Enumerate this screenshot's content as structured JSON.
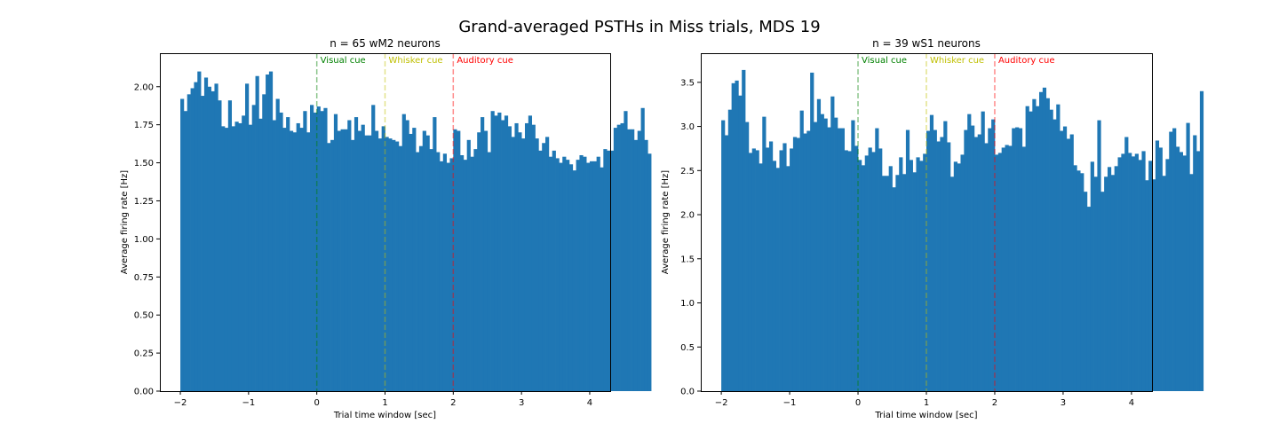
{
  "figure": {
    "title": "Grand-averaged PSTHs in Miss trials, MDS 19"
  },
  "colors": {
    "bar": "#1f77b4",
    "visual": "#008000",
    "whisker": "#bfbf00",
    "auditory": "#ff0000"
  },
  "chart_data": [
    {
      "type": "bar",
      "title": "n = 65 wM2 neurons",
      "xlabel": "Trial time window [sec]",
      "ylabel": "Average firing rate [Hz]",
      "xlim": [
        -2.3,
        4.3
      ],
      "ylim": [
        0,
        2.22
      ],
      "xticks": [
        -2,
        -1,
        0,
        1,
        2,
        3,
        4
      ],
      "yticks": [
        0.0,
        0.25,
        0.5,
        0.75,
        1.0,
        1.25,
        1.5,
        1.75,
        2.0
      ],
      "xtick_labels": [
        "−2",
        "−1",
        "0",
        "1",
        "2",
        "3",
        "4"
      ],
      "ytick_labels": [
        "0.00",
        "0.25",
        "0.50",
        "0.75",
        "1.00",
        "1.25",
        "1.50",
        "1.75",
        "2.00"
      ],
      "bin_start": -2,
      "bin_width": 0.05,
      "values": [
        1.92,
        1.84,
        1.95,
        1.99,
        2.03,
        2.1,
        1.94,
        2.06,
        2.0,
        1.97,
        2.02,
        1.91,
        1.74,
        1.73,
        1.91,
        1.74,
        1.77,
        1.76,
        1.81,
        2.02,
        1.75,
        1.88,
        2.07,
        1.79,
        1.95,
        2.08,
        2.1,
        1.78,
        1.92,
        1.83,
        1.73,
        1.8,
        1.71,
        1.7,
        1.76,
        1.73,
        1.84,
        1.7,
        1.88,
        1.83,
        1.87,
        1.84,
        1.86,
        1.63,
        1.65,
        1.82,
        1.71,
        1.72,
        1.72,
        1.78,
        1.65,
        1.8,
        1.71,
        1.75,
        1.68,
        1.68,
        1.88,
        1.71,
        1.66,
        1.74,
        1.67,
        1.66,
        1.65,
        1.64,
        1.61,
        1.82,
        1.78,
        1.69,
        1.73,
        1.57,
        1.61,
        1.71,
        1.68,
        1.59,
        1.8,
        1.57,
        1.51,
        1.56,
        1.5,
        1.53,
        1.72,
        1.71,
        1.55,
        1.52,
        1.65,
        1.54,
        1.59,
        1.7,
        1.8,
        1.71,
        1.57,
        1.84,
        1.81,
        1.83,
        1.78,
        1.81,
        1.74,
        1.67,
        1.76,
        1.7,
        1.66,
        1.76,
        1.81,
        1.75,
        1.66,
        1.58,
        1.63,
        1.67,
        1.54,
        1.58,
        1.53,
        1.5,
        1.54,
        1.52,
        1.49,
        1.45,
        1.52,
        1.55,
        1.54,
        1.5,
        1.51,
        1.51,
        1.54,
        1.47,
        1.59,
        1.58,
        1.58,
        1.73,
        1.75,
        1.76,
        1.84,
        1.72,
        1.72,
        1.65,
        1.71,
        1.86,
        1.65,
        1.56
      ]
    },
    {
      "type": "bar",
      "title": "n = 39 wS1 neurons",
      "xlabel": "Trial time window [sec]",
      "ylabel": "Average firing rate [Hz]",
      "xlim": [
        -2.3,
        4.3
      ],
      "ylim": [
        0,
        3.83
      ],
      "xticks": [
        -2,
        -1,
        0,
        1,
        2,
        3,
        4
      ],
      "yticks": [
        0.0,
        0.5,
        1.0,
        1.5,
        2.0,
        2.5,
        3.0,
        3.5
      ],
      "xtick_labels": [
        "−2",
        "−1",
        "0",
        "1",
        "2",
        "3",
        "4"
      ],
      "ytick_labels": [
        "0.0",
        "0.5",
        "1.0",
        "1.5",
        "2.0",
        "2.5",
        "3.0",
        "3.5"
      ],
      "bin_start": -2,
      "bin_width": 0.05,
      "values": [
        3.07,
        2.9,
        3.19,
        3.49,
        3.52,
        3.35,
        3.64,
        3.05,
        2.7,
        2.75,
        2.73,
        2.58,
        3.11,
        2.76,
        2.83,
        2.61,
        2.53,
        2.73,
        2.81,
        2.55,
        2.75,
        2.88,
        2.87,
        3.18,
        2.92,
        2.95,
        3.61,
        3.05,
        3.31,
        3.14,
        3.09,
        2.99,
        3.34,
        3.1,
        2.98,
        2.98,
        2.73,
        2.72,
        3.07,
        2.78,
        2.62,
        2.56,
        2.67,
        2.76,
        2.71,
        2.98,
        2.75,
        2.44,
        2.44,
        2.55,
        2.31,
        2.45,
        2.65,
        2.46,
        2.96,
        2.62,
        2.48,
        2.65,
        2.61,
        2.69,
        2.95,
        3.13,
        2.96,
        2.83,
        2.88,
        3.06,
        2.82,
        2.43,
        2.6,
        2.58,
        2.68,
        2.96,
        3.14,
        3.01,
        2.88,
        2.91,
        3.17,
        2.81,
        2.98,
        3.08,
        2.68,
        2.7,
        2.76,
        2.79,
        2.78,
        2.98,
        2.99,
        2.98,
        2.77,
        3.23,
        3.17,
        3.31,
        3.23,
        3.39,
        3.44,
        3.32,
        3.19,
        3.08,
        3.25,
        2.95,
        3.0,
        2.86,
        2.91,
        2.56,
        2.5,
        2.47,
        2.26,
        2.09,
        2.6,
        2.43,
        3.07,
        2.26,
        2.43,
        2.54,
        2.45,
        2.55,
        2.65,
        2.69,
        2.88,
        2.7,
        2.66,
        2.69,
        2.62,
        2.72,
        2.39,
        2.61,
        2.4,
        2.84,
        2.76,
        2.44,
        2.63,
        2.94,
        2.98,
        2.77,
        2.71,
        2.67,
        3.04,
        2.46,
        2.9,
        2.72,
        3.4
      ]
    }
  ],
  "cues": [
    {
      "x": 0,
      "label": "Visual cue",
      "color": "#008000"
    },
    {
      "x": 1,
      "label": "Whisker cue",
      "color": "#bfbf00"
    },
    {
      "x": 2,
      "label": "Auditory cue",
      "color": "#ff0000"
    }
  ]
}
